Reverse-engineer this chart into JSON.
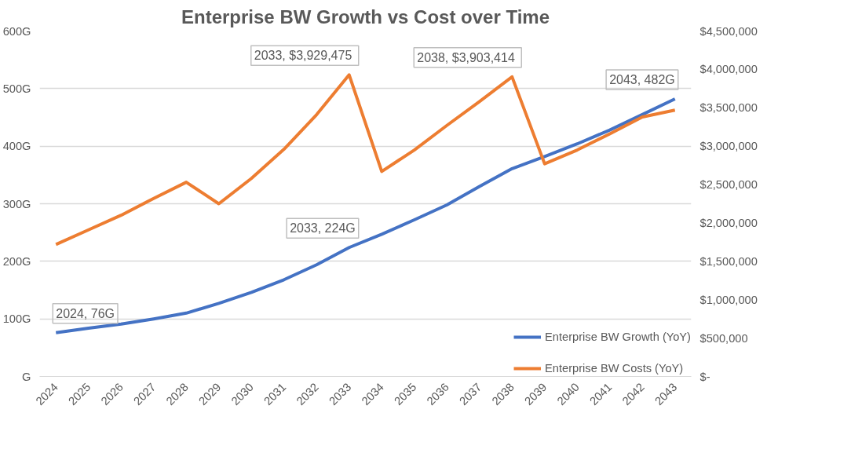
{
  "chart_data": {
    "type": "line",
    "title": "Enterprise BW Growth vs Cost over Time",
    "categories": [
      "2024",
      "2025",
      "2026",
      "2027",
      "2028",
      "2029",
      "2030",
      "2031",
      "2032",
      "2033",
      "2034",
      "2035",
      "2036",
      "2037",
      "2038",
      "2039",
      "2040",
      "2041",
      "2042",
      "2043"
    ],
    "series": [
      {
        "name": "Enterprise BW Growth (YoY)",
        "color": "#4472c4",
        "values": [
          76,
          84,
          91,
          100,
          110,
          127,
          146,
          168,
          194,
          224,
          247,
          272,
          298,
          330,
          361,
          382,
          404,
          428,
          455,
          482
        ],
        "value_labels": [
          "2024, 76G",
          null,
          null,
          null,
          null,
          null,
          null,
          null,
          null,
          "2033, 224G",
          null,
          null,
          null,
          null,
          null,
          null,
          null,
          null,
          null,
          "2043, 482G"
        ]
      },
      {
        "name": "Enterprise BW Costs (YoY)",
        "color": "#ed7d31",
        "axis": "y2",
        "values": [
          1720000,
          1910000,
          2100000,
          2320000,
          2530000,
          2250000,
          2580000,
          2960000,
          3410000,
          3929475,
          2670000,
          2950000,
          3270000,
          3580000,
          3903414,
          2770000,
          2950000,
          3160000,
          3380000,
          3470000
        ],
        "value_labels": [
          null,
          null,
          null,
          null,
          null,
          null,
          null,
          null,
          null,
          "2033,  $3,929,475",
          null,
          null,
          null,
          null,
          "2038,  $3,903,414",
          null,
          null,
          null,
          null,
          null
        ]
      }
    ],
    "ylim": [
      0,
      600
    ],
    "yticks": [
      {
        "value": 0,
        "label": "G"
      },
      {
        "value": 100,
        "label": "100G"
      },
      {
        "value": 200,
        "label": "200G"
      },
      {
        "value": 300,
        "label": "300G"
      },
      {
        "value": 400,
        "label": "400G"
      },
      {
        "value": 500,
        "label": "500G"
      },
      {
        "value": 600,
        "label": "600G"
      }
    ],
    "y2lim": [
      0,
      4500000
    ],
    "y2ticks": [
      {
        "value": 0,
        "label": "$-"
      },
      {
        "value": 500000,
        "label": "$500,000"
      },
      {
        "value": 1000000,
        "label": "$1,000,000"
      },
      {
        "value": 1500000,
        "label": "$1,500,000"
      },
      {
        "value": 2000000,
        "label": "$2,000,000"
      },
      {
        "value": 2500000,
        "label": "$2,500,000"
      },
      {
        "value": 3000000,
        "label": "$3,000,000"
      },
      {
        "value": 3500000,
        "label": "$3,500,000"
      },
      {
        "value": 4000000,
        "label": "$4,000,000"
      },
      {
        "value": 4500000,
        "label": "$4,500,000"
      }
    ],
    "grid": "y",
    "legend": "bottom right",
    "marker": "none",
    "line_style": "solid"
  }
}
